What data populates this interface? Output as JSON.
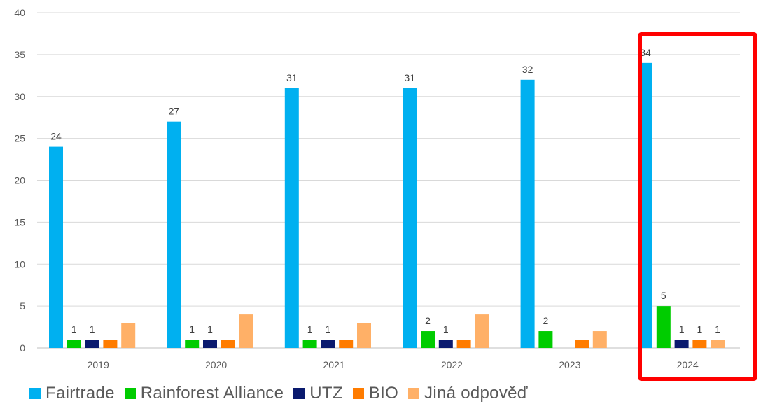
{
  "chart_data": {
    "type": "bar",
    "categories": [
      "2019",
      "2020",
      "2021",
      "2022",
      "2023",
      "2024"
    ],
    "ylim": [
      0,
      40
    ],
    "yticks": [
      0,
      5,
      10,
      15,
      20,
      25,
      30,
      35,
      40
    ],
    "grid": true,
    "legend_position": "bottom",
    "highlight": {
      "category": "2024",
      "color": "#ff0000"
    },
    "series": [
      {
        "name": "Fairtrade",
        "color": "#00b0f0",
        "values": [
          24,
          27,
          31,
          31,
          32,
          34
        ],
        "labels": [
          "24",
          "27",
          "31",
          "31",
          "32",
          "34"
        ]
      },
      {
        "name": "Rainforest Alliance",
        "color": "#00cc00",
        "values": [
          1,
          1,
          1,
          2,
          2,
          5
        ],
        "labels": [
          "1",
          "1",
          "1",
          "2",
          "2",
          "5"
        ]
      },
      {
        "name": "UTZ",
        "color": "#0a1a6e",
        "values": [
          1,
          1,
          1,
          1,
          0,
          1
        ],
        "labels": [
          "1",
          "1",
          "1",
          "1",
          "",
          "1"
        ]
      },
      {
        "name": "BIO",
        "color": "#ff7c00",
        "values": [
          1,
          1,
          1,
          1,
          1,
          1
        ],
        "labels": [
          "",
          "",
          "",
          "",
          "",
          "1"
        ]
      },
      {
        "name": "Jiná odpověď",
        "color": "#ffb067",
        "values": [
          3,
          4,
          3,
          4,
          2,
          1
        ],
        "labels": [
          "",
          "",
          "",
          "",
          "",
          "1"
        ]
      }
    ]
  }
}
